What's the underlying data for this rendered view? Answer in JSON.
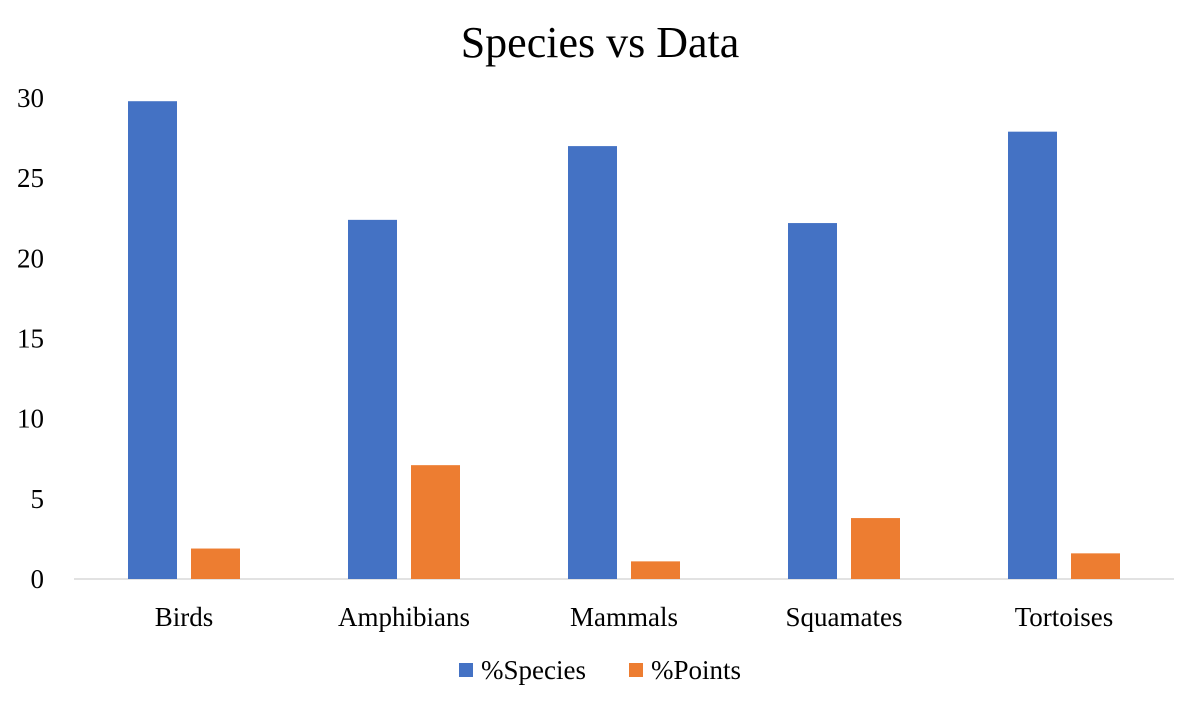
{
  "chart_data": {
    "type": "bar",
    "title": "Species vs Data",
    "xlabel": "",
    "ylabel": "",
    "categories": [
      "Birds",
      "Amphibians",
      "Mammals",
      "Squamates",
      "Tortoises"
    ],
    "series": [
      {
        "name": "%Species",
        "color": "#4472C4",
        "values": [
          29.8,
          22.4,
          27.0,
          22.2,
          27.9
        ]
      },
      {
        "name": "%Points",
        "color": "#ED7D31",
        "values": [
          1.9,
          7.1,
          1.1,
          3.8,
          1.6
        ]
      }
    ],
    "ylim": [
      0,
      30
    ],
    "yticks": [
      0,
      5,
      10,
      15,
      20,
      25,
      30
    ],
    "ytick_labels": [
      "0",
      "5",
      "10",
      "15",
      "20",
      "25",
      "30"
    ],
    "grid": false,
    "legend_position": "bottom"
  }
}
